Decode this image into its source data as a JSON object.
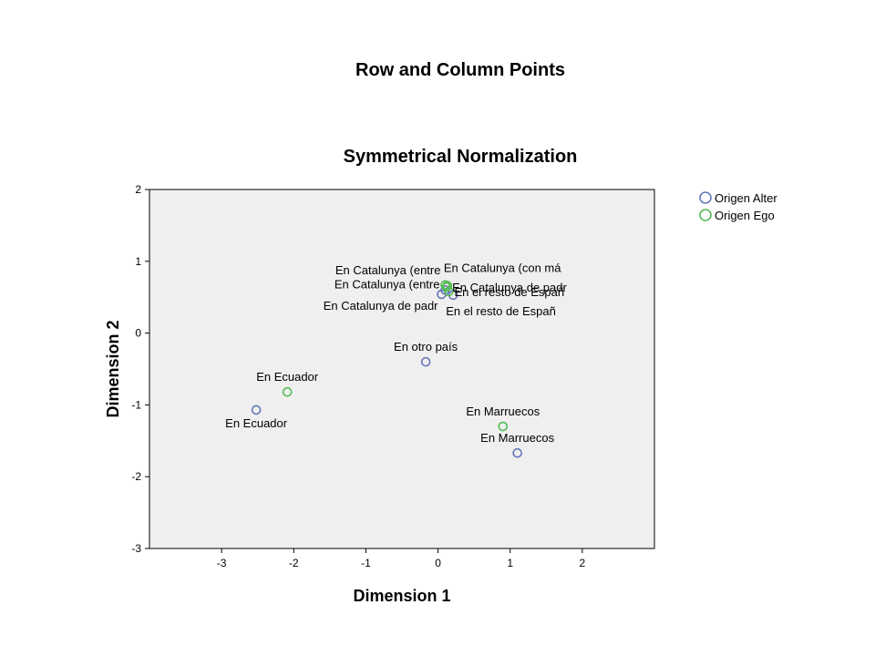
{
  "chart_data": {
    "type": "scatter",
    "title": "Row and Column Points",
    "subtitle": "Symmetrical Normalization",
    "xlabel": "Dimension 1",
    "ylabel": "Dimension 2",
    "xlim": [
      -4.0,
      3.0
    ],
    "ylim": [
      -3,
      2
    ],
    "xticks": [
      -3,
      -2,
      -1,
      0,
      1,
      2
    ],
    "yticks": [
      2,
      1,
      0,
      -1,
      -2,
      -3
    ],
    "grid": false,
    "legend_position": "top-right outside",
    "plot_background": "#efefef",
    "series": [
      {
        "name": "Origen Alter",
        "color": "#6677bb",
        "points": [
          {
            "x": 0.05,
            "y": 0.54,
            "label": "En Catalunya de padr",
            "label_pos": "left-below"
          },
          {
            "x": 0.1,
            "y": 0.6,
            "label": "En Catalunya (entre",
            "label_pos": "left"
          },
          {
            "x": 0.21,
            "y": 0.53,
            "label": "En el resto de Españ",
            "label_pos": "below-right"
          },
          {
            "x": -0.17,
            "y": -0.4,
            "label": "En otro país",
            "label_pos": "above"
          },
          {
            "x": -2.52,
            "y": -1.07,
            "label": "En Ecuador",
            "label_pos": "below"
          },
          {
            "x": 1.1,
            "y": -1.67,
            "label": "En Marruecos",
            "label_pos": "above"
          }
        ]
      },
      {
        "name": "Origen Ego",
        "color": "#55bb55",
        "points": [
          {
            "x": 0.1,
            "y": 0.67,
            "label": "En Catalunya (entre",
            "label_pos": "left-above"
          },
          {
            "x": 0.13,
            "y": 0.66,
            "label": "En Catalunya (con má",
            "label_pos": "above-right"
          },
          {
            "x": 0.12,
            "y": 0.64,
            "label": "En Catalunya de padr",
            "label_pos": "right"
          },
          {
            "x": 0.15,
            "y": 0.58,
            "label": "En el resto de Españ",
            "label_pos": "right"
          },
          {
            "x": -2.09,
            "y": -0.82,
            "label": "En Ecuador",
            "label_pos": "above"
          },
          {
            "x": 0.9,
            "y": -1.3,
            "label": "En Marruecos",
            "label_pos": "above"
          }
        ]
      }
    ]
  }
}
